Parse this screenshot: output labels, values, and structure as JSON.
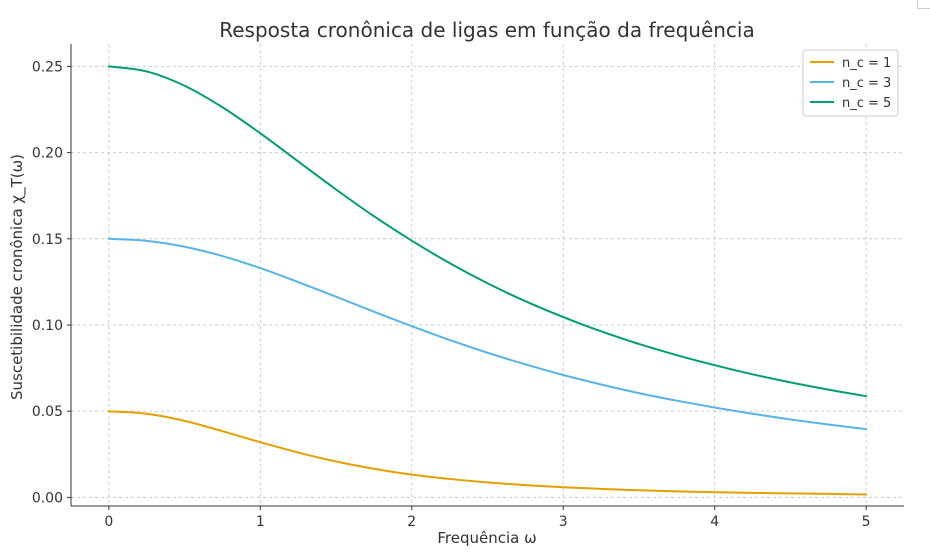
{
  "chart_data": {
    "type": "line",
    "title": "Resposta cronônica de ligas em função da frequência",
    "xlabel": "Frequência ω",
    "ylabel": "Suscetibilidade cronônica χ_T(ω)",
    "xlim": [
      -0.25,
      5.25
    ],
    "ylim": [
      -0.005,
      0.263
    ],
    "xticks": [
      0,
      1,
      2,
      3,
      4,
      5
    ],
    "xtick_labels": [
      "0",
      "1",
      "2",
      "3",
      "4",
      "5"
    ],
    "yticks": [
      0.0,
      0.05,
      0.1,
      0.15,
      0.2,
      0.25
    ],
    "ytick_labels": [
      "0.00",
      "0.05",
      "0.10",
      "0.15",
      "0.20",
      "0.25"
    ],
    "grid": true,
    "legend_position": "top-right",
    "x": [
      0,
      0.25,
      0.5,
      0.75,
      1,
      1.25,
      1.5,
      1.75,
      2,
      2.25,
      2.5,
      2.75,
      3,
      3.25,
      3.5,
      3.75,
      4,
      4.25,
      4.5,
      4.75,
      5
    ],
    "series": [
      {
        "name": "n_c = 1",
        "color": "#E69F00",
        "values": [
          0.05,
          0.0485,
          0.0444,
          0.0384,
          0.032,
          0.026,
          0.0208,
          0.0166,
          0.0132,
          0.0107,
          0.0087,
          0.0071,
          0.0059,
          0.0049,
          0.0041,
          0.0035,
          0.003,
          0.0026,
          0.0023,
          0.002,
          0.0017
        ]
      },
      {
        "name": "n_c = 3",
        "color": "#56B4E9",
        "values": [
          0.15,
          0.1488,
          0.1454,
          0.14,
          0.133,
          0.1249,
          0.1164,
          0.1077,
          0.0993,
          0.0913,
          0.0839,
          0.0772,
          0.071,
          0.0655,
          0.0605,
          0.0561,
          0.0521,
          0.0485,
          0.0452,
          0.0423,
          0.0396
        ]
      },
      {
        "name": "n_c = 5",
        "color": "#009E73",
        "values": [
          0.25,
          0.2471,
          0.2388,
          0.2263,
          0.2112,
          0.1949,
          0.1786,
          0.1631,
          0.1489,
          0.1359,
          0.1242,
          0.1138,
          0.1046,
          0.0963,
          0.089,
          0.0825,
          0.0767,
          0.0714,
          0.0667,
          0.0625,
          0.0587
        ]
      }
    ]
  }
}
